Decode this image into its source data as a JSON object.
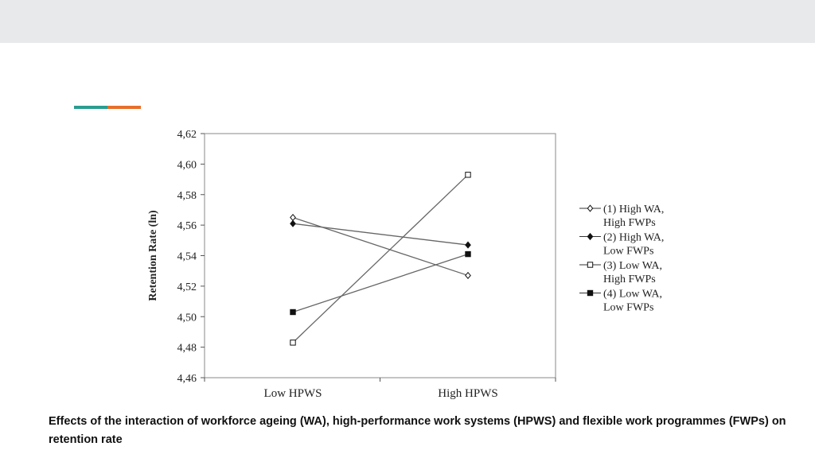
{
  "colors": {
    "accent_teal": "#2a9d8f",
    "accent_orange": "#e76f2a",
    "band": "#e8e9eb"
  },
  "chart_data": {
    "type": "line",
    "title": "",
    "ylabel": "Retention Rate (ln)",
    "xlabel": "",
    "categories": [
      "Low HPWS",
      "High HPWS"
    ],
    "ylim": [
      4.46,
      4.62
    ],
    "yticks": [
      "4,46",
      "4,48",
      "4,50",
      "4,52",
      "4,54",
      "4,56",
      "4,58",
      "4,60",
      "4,62"
    ],
    "grid": false,
    "legend_position": "right",
    "series": [
      {
        "name": "(1) High WA, High FWPs",
        "label_lines": [
          "(1) High WA,",
          "High FWPs"
        ],
        "marker": "open-diamond",
        "values": [
          4.565,
          4.527
        ]
      },
      {
        "name": "(2) High WA, Low FWPs",
        "label_lines": [
          "(2) High WA,",
          "Low FWPs"
        ],
        "marker": "filled-diamond",
        "values": [
          4.561,
          4.547
        ]
      },
      {
        "name": "(3) Low WA, High FWPs",
        "label_lines": [
          "(3) Low WA,",
          "High FWPs"
        ],
        "marker": "open-square",
        "values": [
          4.483,
          4.593
        ]
      },
      {
        "name": "(4) Low WA, Low FWPs",
        "label_lines": [
          "(4) Low WA,",
          "Low FWPs"
        ],
        "marker": "filled-square",
        "values": [
          4.503,
          4.541
        ]
      }
    ]
  },
  "caption": "Effects of the interaction of workforce ageing (WA), high-performance work systems (HPWS) and flexible work programmes (FWPs) on retention rate"
}
